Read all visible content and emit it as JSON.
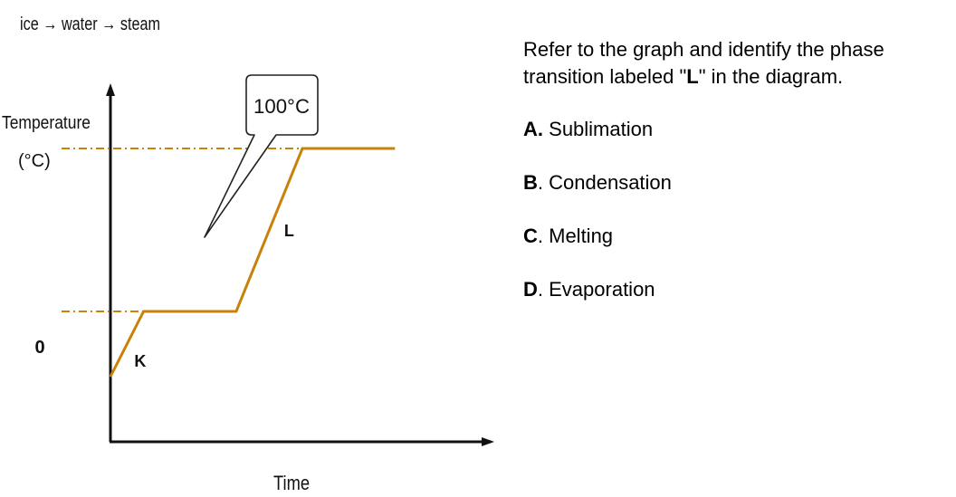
{
  "chart_data": {
    "type": "line",
    "title": "ice → water → steam",
    "ylabel": "Temperature (°C)",
    "xlabel": "Time",
    "y_tick_labels": [
      "0"
    ],
    "reference_lines": [
      {
        "y": 0,
        "style": "dash-dot"
      },
      {
        "y": 100,
        "style": "dash-dot"
      }
    ],
    "callout": "100°C",
    "series": [
      {
        "color": "#c8820a",
        "points": [
          {
            "x": 0,
            "y": -40
          },
          {
            "x": 1,
            "y": 0
          },
          {
            "x": 3.8,
            "y": 0
          },
          {
            "x": 5.8,
            "y": 100
          },
          {
            "x": 8.6,
            "y": 100
          }
        ]
      }
    ],
    "point_labels": [
      {
        "text": "K",
        "x": 0.9,
        "y": -30
      },
      {
        "text": "L",
        "x": 5.4,
        "y": 50
      }
    ],
    "xlim": [
      0,
      11.6
    ],
    "ylim": [
      -80,
      140
    ],
    "grid": false
  },
  "question": {
    "prompt_before": "Refer to the graph and identify the phase transition labeled \"",
    "prompt_bold": "L",
    "prompt_after": "\" in the diagram.",
    "options": [
      {
        "letter": "A",
        "text": "Sublimation"
      },
      {
        "letter": "B",
        "text": "Condensation"
      },
      {
        "letter": "C",
        "text": "Melting"
      },
      {
        "letter": "D",
        "text": "Evaporation"
      }
    ]
  }
}
